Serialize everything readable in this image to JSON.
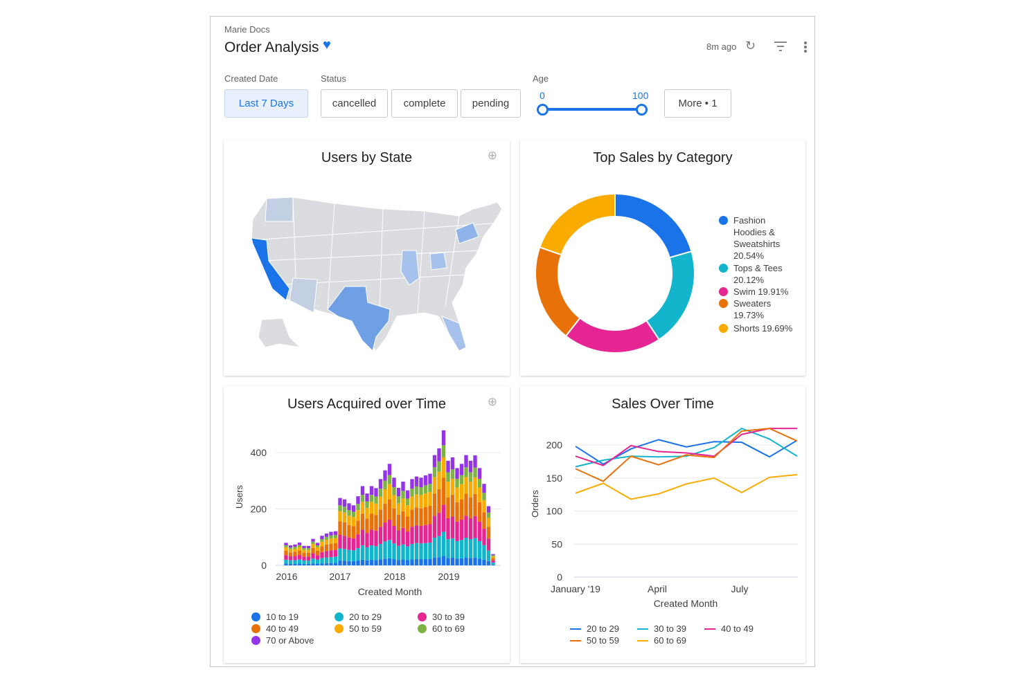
{
  "header": {
    "breadcrumb": "Marie Docs",
    "title": "Order Analysis",
    "updated": "8m ago",
    "icons": [
      "heart-icon",
      "refresh-icon",
      "filter-icon",
      "more-vert-icon"
    ]
  },
  "filters": {
    "created_date": {
      "label": "Created Date",
      "value": "Last 7 Days"
    },
    "status": {
      "label": "Status",
      "options": [
        "cancelled",
        "complete",
        "pending"
      ]
    },
    "age": {
      "label": "Age",
      "min": "0",
      "max": "100"
    },
    "more": "More • 1"
  },
  "colors": {
    "accent": "#1a73e8",
    "s10": "#1a73e8",
    "s20": "#12b5cb",
    "s30": "#e52592",
    "s40": "#e8710a",
    "s50": "#f9ab00",
    "s60": "#7cb342",
    "s70": "#9334e6"
  },
  "map": {
    "title": "Users by State",
    "highlight_color": "#1a73e8"
  },
  "donut": {
    "title": "Top Sales by Category",
    "chart_data": {
      "type": "pie",
      "slices": [
        {
          "label": "Fashion Hoodies & Sweatshirts",
          "pct": 20.54,
          "text": "Fashion Hoodies & Sweatshirts 20.54%",
          "color": "#1a73e8"
        },
        {
          "label": "Tops & Tees",
          "pct": 20.12,
          "text": "Tops & Tees 20.12%",
          "color": "#12b5cb"
        },
        {
          "label": "Swim",
          "pct": 19.91,
          "text": "Swim 19.91%",
          "color": "#e52592"
        },
        {
          "label": "Sweaters",
          "pct": 19.73,
          "text": "Sweaters 19.73%",
          "color": "#e8710a"
        },
        {
          "label": "Shorts",
          "pct": 19.69,
          "text": "Shorts 19.69%",
          "color": "#f9ab00"
        }
      ]
    }
  },
  "bars": {
    "title": "Users Acquired over Time",
    "chart_data": {
      "type": "bar",
      "stacked": true,
      "xlabel": "Created Month",
      "ylabel": "Users",
      "ylim": [
        0,
        420
      ],
      "yticks": [
        "0",
        "200",
        "400"
      ],
      "xticks": [
        "2016",
        "2017",
        "2018",
        "2019"
      ],
      "series": [
        {
          "name": "10 to 19",
          "color": "#1a73e8",
          "values": [
            6,
            5,
            5,
            6,
            5,
            5,
            7,
            6,
            7,
            8,
            8,
            9,
            17,
            16,
            15,
            15,
            17,
            20,
            18,
            20,
            19,
            21,
            24,
            25,
            22,
            19,
            21,
            19,
            21,
            22,
            22,
            22,
            23,
            27,
            29,
            33,
            26,
            27,
            24,
            25,
            27,
            26,
            27,
            24,
            20,
            15,
            3
          ]
        },
        {
          "name": "20 to 29",
          "color": "#12b5cb",
          "values": [
            14,
            13,
            13,
            15,
            12,
            12,
            17,
            14,
            19,
            20,
            21,
            22,
            43,
            42,
            40,
            38,
            44,
            51,
            46,
            51,
            49,
            55,
            61,
            65,
            56,
            50,
            53,
            48,
            55,
            57,
            56,
            57,
            58,
            71,
            75,
            86,
            67,
            69,
            62,
            65,
            71,
            67,
            70,
            62,
            52,
            38,
            7
          ]
        },
        {
          "name": "30 to 39",
          "color": "#e52592",
          "values": [
            16,
            14,
            15,
            16,
            14,
            14,
            19,
            16,
            21,
            23,
            24,
            24,
            48,
            47,
            44,
            43,
            49,
            56,
            51,
            56,
            55,
            61,
            67,
            72,
            62,
            55,
            59,
            53,
            61,
            63,
            62,
            64,
            65,
            78,
            83,
            96,
            74,
            77,
            69,
            72,
            78,
            74,
            78,
            69,
            58,
            42,
            8
          ]
        },
        {
          "name": "40 to 49",
          "color": "#e8710a",
          "values": [
            16,
            14,
            15,
            16,
            14,
            14,
            19,
            16,
            21,
            23,
            24,
            24,
            48,
            47,
            44,
            43,
            49,
            56,
            51,
            56,
            55,
            61,
            67,
            72,
            62,
            55,
            59,
            53,
            61,
            63,
            62,
            64,
            65,
            78,
            83,
            96,
            74,
            77,
            69,
            72,
            78,
            74,
            78,
            69,
            58,
            42,
            8
          ]
        },
        {
          "name": "50 to 59",
          "color": "#f9ab00",
          "values": [
            12,
            11,
            11,
            12,
            10,
            10,
            14,
            12,
            16,
            17,
            18,
            18,
            36,
            35,
            33,
            32,
            37,
            42,
            38,
            42,
            41,
            46,
            51,
            54,
            47,
            41,
            45,
            40,
            46,
            47,
            47,
            48,
            49,
            59,
            62,
            72,
            56,
            57,
            52,
            54,
            59,
            56,
            59,
            52,
            43,
            31,
            6
          ]
        },
        {
          "name": "60 to 69",
          "color": "#7cb342",
          "values": [
            7,
            6,
            7,
            7,
            6,
            6,
            8,
            7,
            9,
            10,
            11,
            11,
            21,
            21,
            20,
            19,
            22,
            25,
            23,
            25,
            25,
            28,
            30,
            32,
            28,
            25,
            27,
            24,
            28,
            28,
            28,
            29,
            29,
            35,
            37,
            43,
            33,
            34,
            31,
            32,
            35,
            33,
            35,
            31,
            26,
            19,
            4
          ]
        },
        {
          "name": "70 or Above",
          "color": "#9334e6",
          "values": [
            9,
            8,
            8,
            9,
            8,
            8,
            10,
            9,
            12,
            12,
            13,
            13,
            26,
            26,
            24,
            23,
            27,
            31,
            28,
            31,
            30,
            34,
            37,
            40,
            34,
            30,
            33,
            29,
            34,
            35,
            34,
            35,
            36,
            43,
            46,
            53,
            41,
            42,
            38,
            40,
            43,
            41,
            43,
            38,
            32,
            23,
            4
          ]
        }
      ]
    }
  },
  "lines": {
    "title": "Sales Over Time",
    "chart_data": {
      "type": "line",
      "xlabel": "Created Month",
      "ylabel": "Orders",
      "ylim": [
        0,
        225
      ],
      "yticks": [
        "0",
        "50",
        "100",
        "150",
        "200"
      ],
      "x": [
        "Jan 2019",
        "Feb 2019",
        "Mar 2019",
        "Apr 2019",
        "May 2019",
        "Jun 2019",
        "Jul 2019",
        "Aug 2019",
        "Sep 2019"
      ],
      "xticks": [
        "January '19",
        "April",
        "July"
      ],
      "series": [
        {
          "name": "20 to 29",
          "color": "#1a73e8",
          "values": [
            198,
            171,
            194,
            208,
            197,
            205,
            204,
            182,
            207
          ]
        },
        {
          "name": "30 to 39",
          "color": "#12b5cb",
          "values": [
            167,
            177,
            183,
            182,
            183,
            196,
            225,
            209,
            183
          ]
        },
        {
          "name": "40 to 49",
          "color": "#e52592",
          "values": [
            183,
            169,
            199,
            190,
            188,
            183,
            216,
            225,
            225
          ]
        },
        {
          "name": "50 to 59",
          "color": "#e8710a",
          "values": [
            164,
            145,
            183,
            170,
            185,
            181,
            221,
            225,
            206
          ]
        },
        {
          "name": "60 to 69",
          "color": "#f9ab00",
          "values": [
            127,
            142,
            118,
            126,
            141,
            150,
            128,
            151,
            155
          ]
        }
      ]
    }
  }
}
